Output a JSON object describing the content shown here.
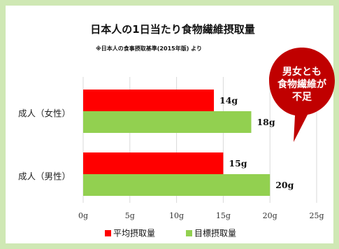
{
  "chart_data": {
    "type": "bar",
    "orientation": "horizontal",
    "title": "日本人の1日当たり食物繊維摂取量",
    "subtitle": "※日本人の食事摂取基準(2015年版) より",
    "categories": [
      "成人（女性）",
      "成人（男性）"
    ],
    "series": [
      {
        "name": "平均摂取量",
        "color": "#ff0000",
        "values": [
          14,
          15
        ],
        "labels": [
          "14g",
          "15g"
        ]
      },
      {
        "name": "目標摂取量",
        "color": "#92d050",
        "values": [
          18,
          20
        ],
        "labels": [
          "18g",
          "20g"
        ]
      }
    ],
    "xlim": [
      0,
      25
    ],
    "xticks": [
      0,
      5,
      10,
      15,
      20,
      25
    ],
    "xtick_labels": [
      "0g",
      "5g",
      "10g",
      "15g",
      "20g",
      "25g"
    ],
    "grid": true,
    "legend_position": "bottom"
  },
  "callout": {
    "lines": [
      "男女とも",
      "食物繊維が",
      "不足"
    ],
    "color": "#c00000"
  }
}
